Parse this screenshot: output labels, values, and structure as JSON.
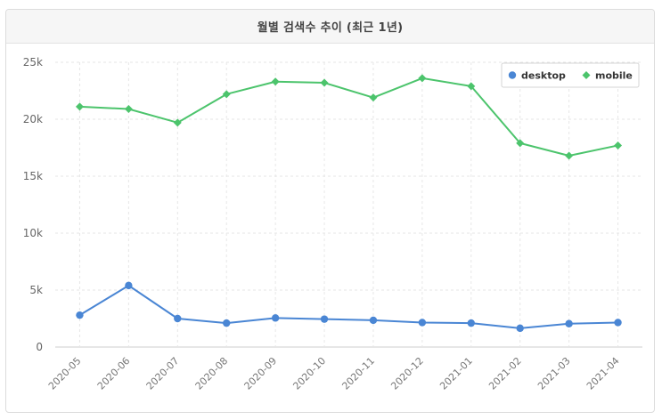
{
  "panel": {
    "title": "월별 검색수 추이 (최근 1년)"
  },
  "chart_data": {
    "type": "line",
    "x": [
      "2020-05",
      "2020-06",
      "2020-07",
      "2020-08",
      "2020-09",
      "2020-10",
      "2020-11",
      "2020-12",
      "2021-01",
      "2021-02",
      "2021-03",
      "2021-04"
    ],
    "ylim": [
      0,
      25000
    ],
    "yticks": [
      0,
      5000,
      10000,
      15000,
      20000,
      25000
    ],
    "ytick_labels": [
      "0",
      "5k",
      "10k",
      "15k",
      "20k",
      "25k"
    ],
    "grid": true,
    "legend_position": "top-right",
    "series": [
      {
        "name": "desktop",
        "color": "#4a86d4",
        "marker": "circle",
        "values": [
          2800,
          5400,
          2500,
          2100,
          2550,
          2450,
          2350,
          2150,
          2100,
          1650,
          2050,
          2150
        ]
      },
      {
        "name": "mobile",
        "color": "#4cc46c",
        "marker": "diamond",
        "values": [
          21100,
          20900,
          19700,
          22200,
          23300,
          23200,
          21900,
          23600,
          22900,
          17900,
          16800,
          17700
        ]
      }
    ]
  }
}
